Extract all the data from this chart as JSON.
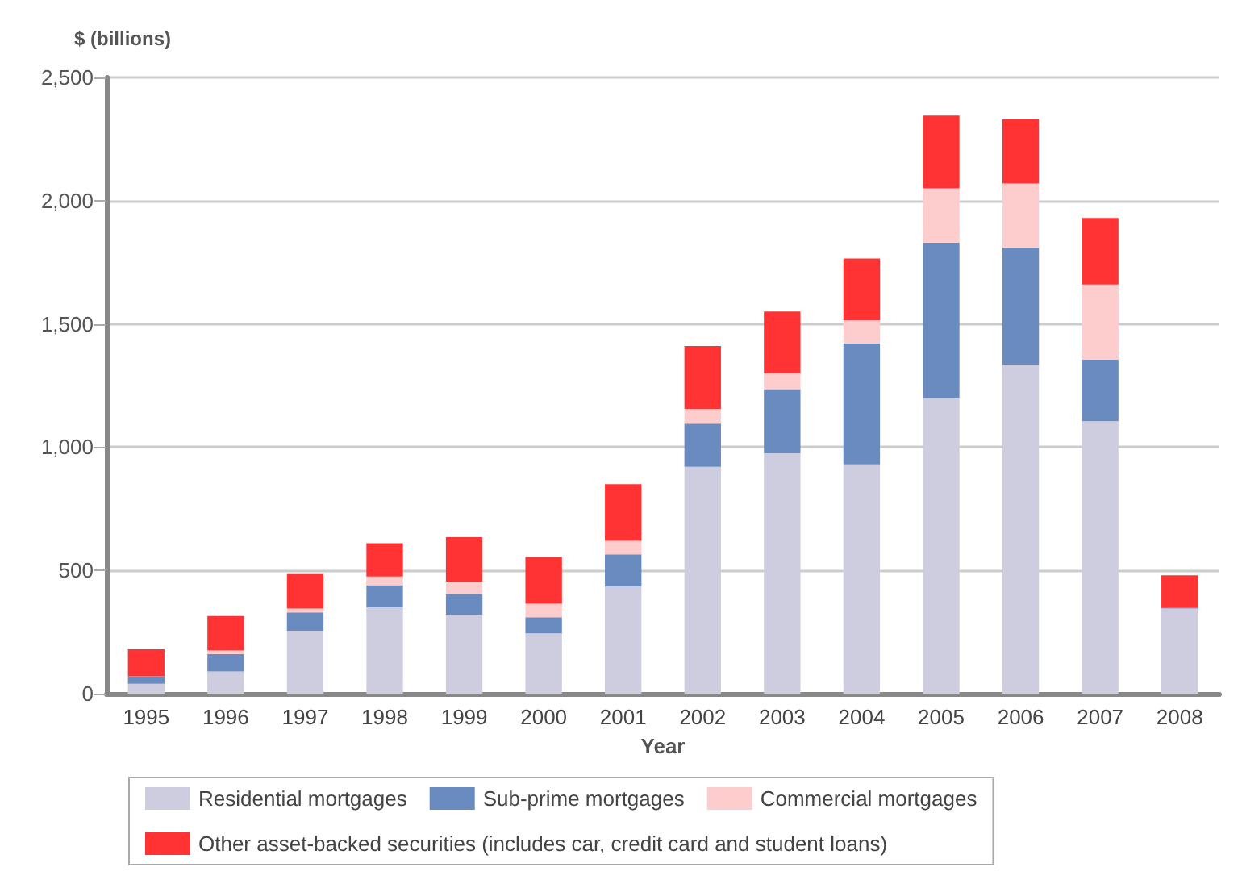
{
  "chart_data": {
    "type": "bar",
    "ylabel": "$ (billions)",
    "xlabel": "Year",
    "stacked": true,
    "grid": "y",
    "legend": "bottom",
    "categories": [
      "1995",
      "1996",
      "1997",
      "1998",
      "1999",
      "2000",
      "2001",
      "2002",
      "2003",
      "2004",
      "2005",
      "2006",
      "2007",
      "2008"
    ],
    "ylim": [
      0,
      2500
    ],
    "yticks": [
      0,
      {
        "value": 500,
        "label": "500"
      },
      {
        "value": 1000,
        "label": "1,000"
      },
      {
        "value": 1500,
        "label": "1,500"
      },
      {
        "value": 2000,
        "label": "2,000"
      },
      {
        "value": 2500,
        "label": "2,500"
      }
    ],
    "series": [
      {
        "name": "Residential mortgages",
        "color": "#cdcddf",
        "values": [
          40,
          90,
          255,
          350,
          320,
          245,
          435,
          920,
          975,
          930,
          1200,
          1335,
          1105,
          345
        ]
      },
      {
        "name": "Sub-prime mortgages",
        "color": "#6a8bbf",
        "values": [
          30,
          70,
          75,
          90,
          85,
          65,
          130,
          175,
          260,
          490,
          630,
          475,
          250,
          5
        ]
      },
      {
        "name": "Commercial mortgages",
        "color": "#fdcccc",
        "values": [
          0,
          15,
          15,
          35,
          50,
          55,
          55,
          60,
          65,
          95,
          220,
          260,
          305,
          0
        ]
      },
      {
        "name": "Other asset-backed securities (includes car, credit card and student loans)",
        "color": "#ff3333",
        "values": [
          110,
          140,
          140,
          135,
          180,
          190,
          230,
          255,
          250,
          250,
          295,
          260,
          270,
          130
        ]
      }
    ]
  }
}
